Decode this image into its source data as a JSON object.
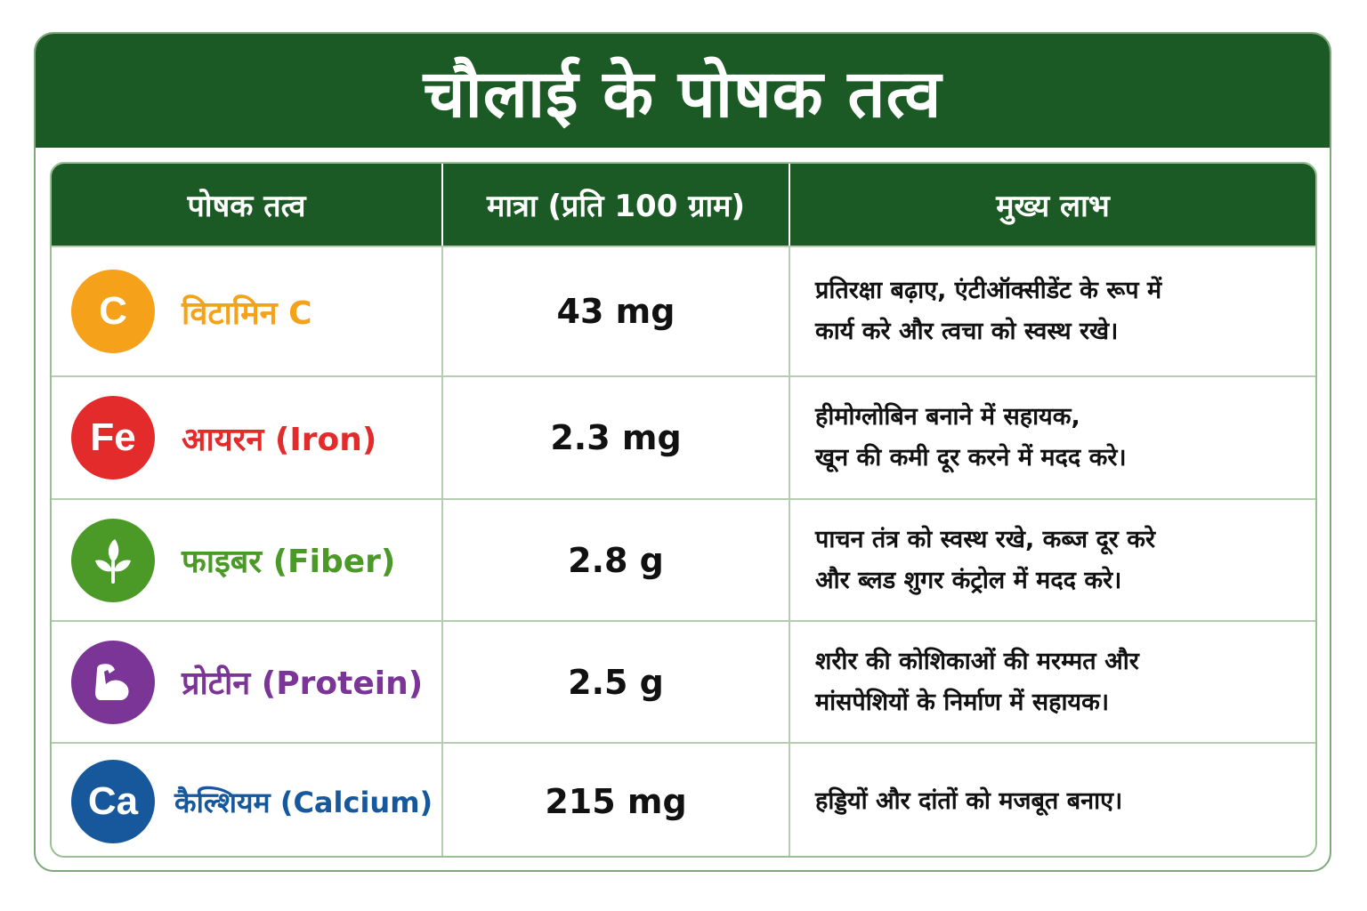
{
  "title": "चौलाई के पोषक तत्व",
  "columns": [
    "पोषक तत्व",
    "मात्रा (प्रति 100 ग्राम)",
    "मुख्य लाभ"
  ],
  "colors": {
    "header_green": "#1b5a25",
    "vitamin_c": "#f5a11a",
    "iron": "#e32b2b",
    "fiber": "#4b9a28",
    "protein": "#7a3597",
    "calcium": "#17589d"
  },
  "rows": [
    {
      "badge_text": "C",
      "name": "विटामिन C",
      "amount": "43 mg",
      "benefit_line1": "प्रतिरक्षा बढ़ाए, एंटीऑक्सीडेंट के रूप में",
      "benefit_line2": "कार्य करे और त्वचा को स्वस्थ रखे।"
    },
    {
      "badge_text": "Fe",
      "name": "आयरन (Iron)",
      "amount": "2.3 mg",
      "benefit_line1": "हीमोग्लोबिन बनाने में सहायक,",
      "benefit_line2": "खून की कमी दूर करने में मदद करे।"
    },
    {
      "badge_icon": "leaf-icon",
      "name": "फाइबर (Fiber)",
      "amount": "2.8 g",
      "benefit_line1": "पाचन तंत्र को स्वस्थ रखे, कब्ज दूर करे",
      "benefit_line2": "और ब्लड शुगर कंट्रोल में मदद करे।"
    },
    {
      "badge_icon": "flexed-arm-icon",
      "name": "प्रोटीन (Protein)",
      "amount": "2.5 g",
      "benefit_line1": "शरीर की कोशिकाओं की मरम्मत और",
      "benefit_line2": "मांसपेशियों के निर्माण में सहायक।"
    },
    {
      "badge_text": "Ca",
      "name": "कैल्शियम (Calcium)",
      "amount": "215 mg",
      "benefit_line1": "हड्डियों और दांतों को मजबूत बनाए।",
      "benefit_line2": ""
    }
  ]
}
